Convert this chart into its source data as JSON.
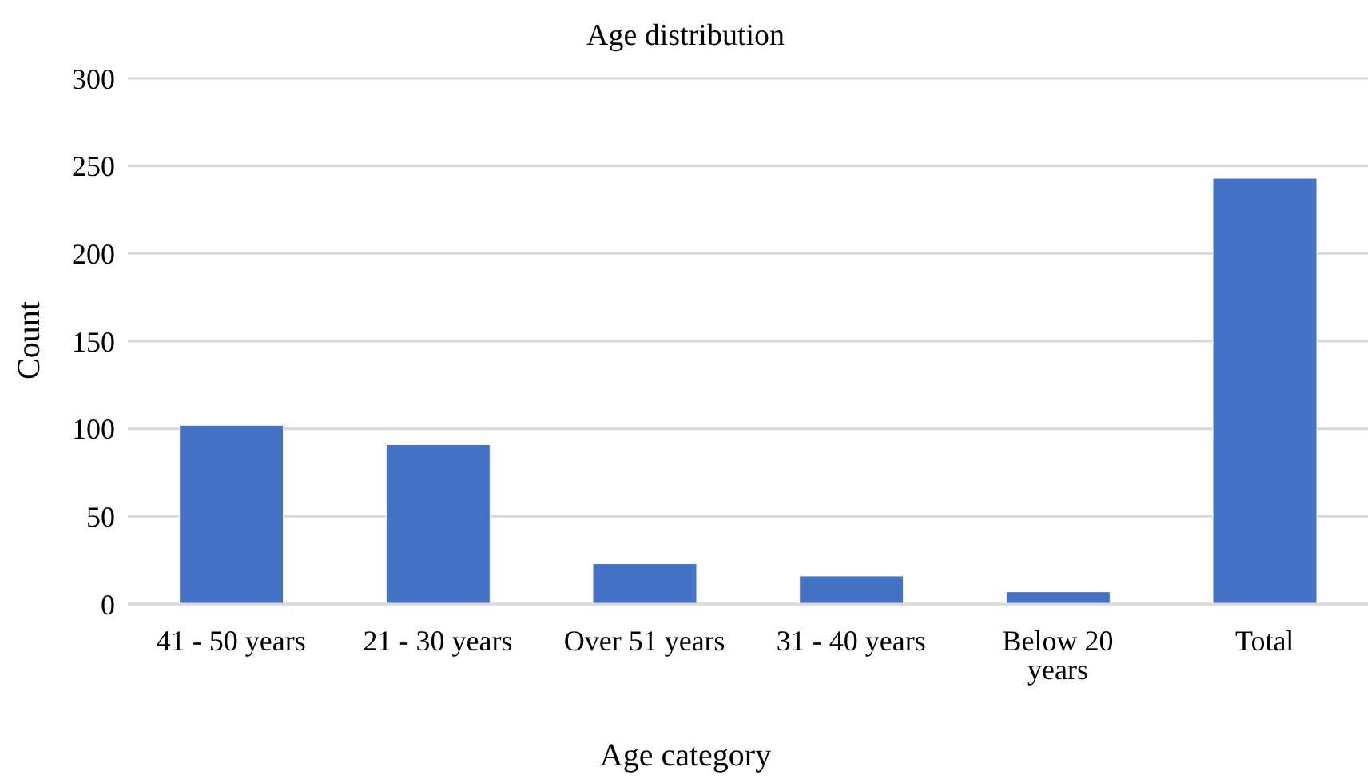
{
  "chart_data": {
    "type": "bar",
    "title": "Age distribution",
    "xlabel": "Age category",
    "ylabel": "Count",
    "categories": [
      "41 - 50 years",
      "21 - 30 years",
      "Over 51 years",
      "31 - 40 years",
      "Below 20 years",
      "Total"
    ],
    "values": [
      102,
      91,
      23,
      16,
      7,
      243
    ],
    "color": "#4472c4",
    "ylim": [
      0,
      300
    ],
    "yticks": [
      0,
      50,
      100,
      150,
      200,
      250,
      300
    ],
    "grid": "y"
  }
}
